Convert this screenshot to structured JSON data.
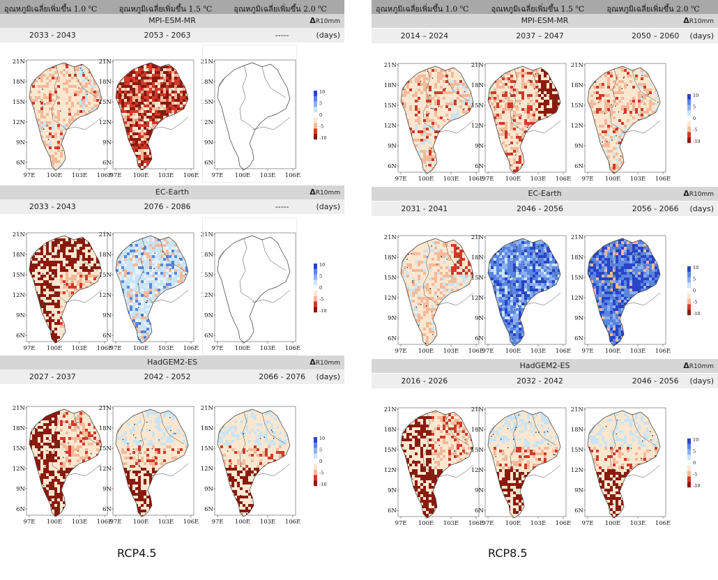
{
  "headers": [
    {
      "text": "อุณหภูมิเฉลี่ยเพิ่มขึ้น 1.0",
      "deg": "o",
      "unit": "C"
    },
    {
      "text": "อุณหภูมิเฉลี่ยเพิ่มขึ้น 1.5",
      "deg": "o",
      "unit": "C"
    },
    {
      "text": "อุณหภูมิเฉลี่ยเพิ่มขึ้น 2.0",
      "deg": "o",
      "unit": "C"
    }
  ],
  "delta_symbol": "Δ",
  "delta_var": "R10mm",
  "unit": "(days)",
  "left": {
    "caption": "RCP4.5",
    "models": [
      {
        "name": "MPI-ESM-MR",
        "periods": [
          "2033 - 2043",
          "2053 - 2063",
          "-----"
        ],
        "patterns": [
          "mixed-light",
          "red",
          "blank"
        ]
      },
      {
        "name": "EC-Earth",
        "periods": [
          "2033 - 2043",
          "2076 - 2086",
          "-----"
        ],
        "patterns": [
          "red-west",
          "light-blue",
          "blank"
        ]
      },
      {
        "name": "HadGEM2-ES",
        "periods": [
          "2027 - 2037",
          "2042 - 2052",
          "2066 - 2076"
        ],
        "patterns": [
          "red-south",
          "red-south-blue",
          "red-south-blue"
        ]
      }
    ]
  },
  "right": {
    "caption": "RCP8.5",
    "models": [
      {
        "name": "MPI-ESM-MR",
        "periods": [
          "2014 – 2024",
          "2037 – 2047",
          "2050 – 2060"
        ],
        "patterns": [
          "mixed-light",
          "red-east",
          "mixed-light"
        ]
      },
      {
        "name": "EC-Earth",
        "periods": [
          "2031 - 2041",
          "2046 - 2056",
          "2056 - 2066"
        ],
        "patterns": [
          "light-red-north",
          "blue",
          "blue-strong"
        ]
      },
      {
        "name": "HadGEM2-ES",
        "periods": [
          "2016 - 2026",
          "2032 - 2042",
          "2046 - 2056"
        ],
        "patterns": [
          "red-south",
          "red-south-blue",
          "red-south-blue"
        ]
      }
    ]
  },
  "lat_ticks": [
    "21N",
    "18N",
    "15N",
    "12N",
    "9N",
    "6N"
  ],
  "lon_ticks": [
    "97E",
    "100E",
    "103E",
    "106E"
  ],
  "colorbar_ticks": [
    "10",
    "5",
    "0",
    "-5",
    "-10"
  ],
  "colors": {
    "header_bg": "#a8a8a8",
    "model_bg": "#d6d6d6",
    "period_bg": "#eeeeee",
    "strong_red": "#8b1a0e",
    "red": "#d2392b",
    "light_red": "#f4b99a",
    "pale": "#fbe7cf",
    "light_blue": "#c9e4f5",
    "blue": "#5a86e0",
    "deep_blue": "#2945c8"
  }
}
